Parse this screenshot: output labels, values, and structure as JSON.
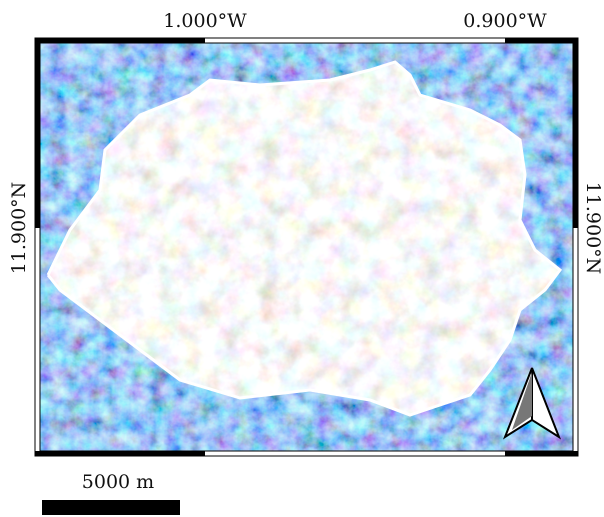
{
  "map": {
    "lon_labels": [
      "1.000°W",
      "0.900°W"
    ],
    "lat_labels": [
      "11.900°N",
      "11.900°N"
    ],
    "scale_bar": {
      "label": "5000 m"
    }
  }
}
